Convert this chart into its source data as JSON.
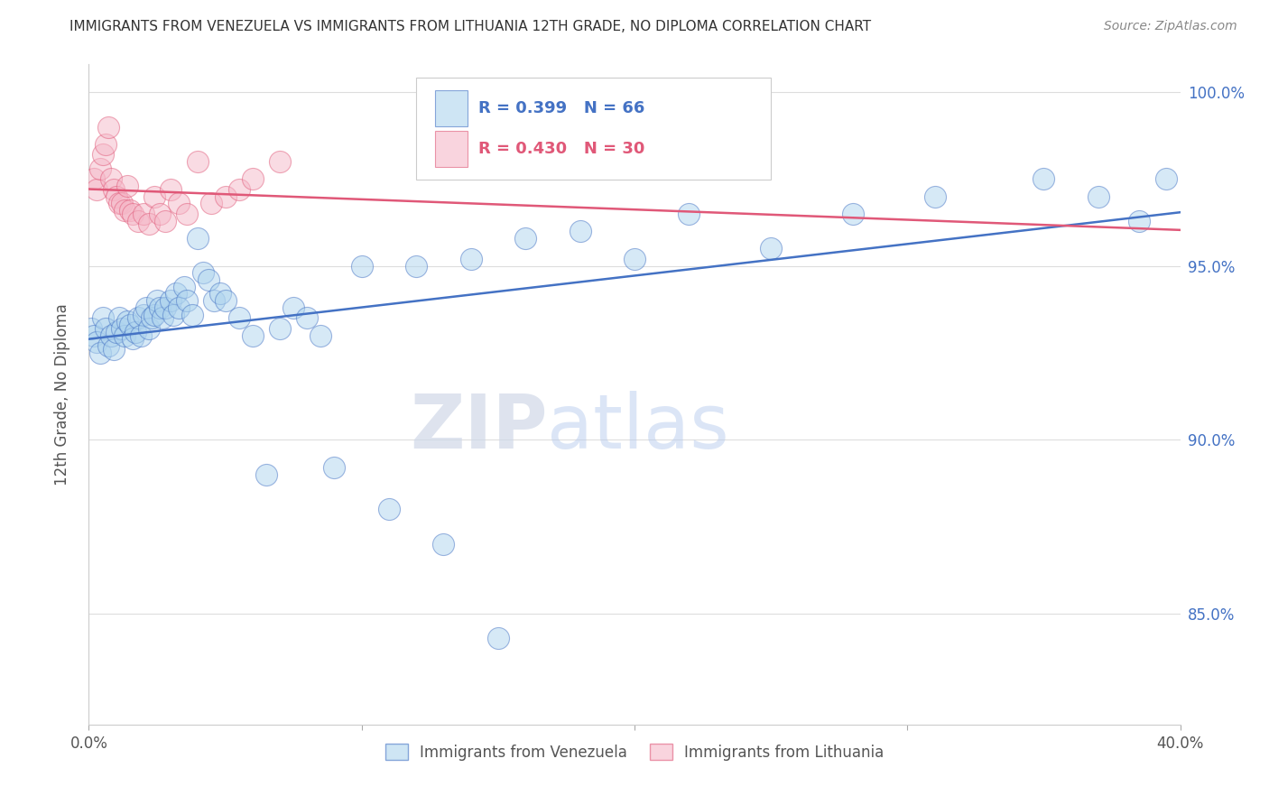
{
  "title": "IMMIGRANTS FROM VENEZUELA VS IMMIGRANTS FROM LITHUANIA 12TH GRADE, NO DIPLOMA CORRELATION CHART",
  "source": "Source: ZipAtlas.com",
  "ylabel": "12th Grade, No Diploma",
  "xlim": [
    0.0,
    0.4
  ],
  "ylim": [
    0.818,
    1.008
  ],
  "R_venezuela": 0.399,
  "N_venezuela": 66,
  "R_lithuania": 0.43,
  "N_lithuania": 30,
  "color_venezuela": "#aed4ee",
  "color_lithuania": "#f5b8c8",
  "line_color_venezuela": "#4472c4",
  "line_color_lithuania": "#e05878",
  "legend_label_venezuela": "Immigrants from Venezuela",
  "legend_label_lithuania": "Immigrants from Lithuania",
  "venezuela_x": [
    0.001,
    0.002,
    0.003,
    0.004,
    0.005,
    0.006,
    0.007,
    0.008,
    0.009,
    0.01,
    0.011,
    0.012,
    0.013,
    0.014,
    0.015,
    0.016,
    0.017,
    0.018,
    0.019,
    0.02,
    0.021,
    0.022,
    0.023,
    0.024,
    0.025,
    0.026,
    0.027,
    0.028,
    0.03,
    0.031,
    0.032,
    0.033,
    0.035,
    0.036,
    0.038,
    0.04,
    0.042,
    0.044,
    0.046,
    0.048,
    0.05,
    0.055,
    0.06,
    0.065,
    0.07,
    0.075,
    0.08,
    0.085,
    0.09,
    0.1,
    0.11,
    0.12,
    0.13,
    0.14,
    0.15,
    0.16,
    0.18,
    0.2,
    0.22,
    0.25,
    0.28,
    0.31,
    0.35,
    0.37,
    0.385,
    0.395
  ],
  "venezuela_y": [
    0.932,
    0.93,
    0.928,
    0.925,
    0.935,
    0.932,
    0.927,
    0.93,
    0.926,
    0.931,
    0.935,
    0.932,
    0.93,
    0.934,
    0.933,
    0.929,
    0.931,
    0.935,
    0.93,
    0.936,
    0.938,
    0.932,
    0.935,
    0.936,
    0.94,
    0.938,
    0.935,
    0.938,
    0.94,
    0.936,
    0.942,
    0.938,
    0.944,
    0.94,
    0.936,
    0.958,
    0.948,
    0.946,
    0.94,
    0.942,
    0.94,
    0.935,
    0.93,
    0.89,
    0.932,
    0.938,
    0.935,
    0.93,
    0.892,
    0.95,
    0.88,
    0.95,
    0.87,
    0.952,
    0.843,
    0.958,
    0.96,
    0.952,
    0.965,
    0.955,
    0.965,
    0.97,
    0.975,
    0.97,
    0.963,
    0.975
  ],
  "lithuania_x": [
    0.002,
    0.003,
    0.004,
    0.005,
    0.006,
    0.007,
    0.008,
    0.009,
    0.01,
    0.011,
    0.012,
    0.013,
    0.014,
    0.015,
    0.016,
    0.018,
    0.02,
    0.022,
    0.024,
    0.026,
    0.028,
    0.03,
    0.033,
    0.036,
    0.04,
    0.045,
    0.05,
    0.055,
    0.06,
    0.07
  ],
  "lithuania_y": [
    0.975,
    0.972,
    0.978,
    0.982,
    0.985,
    0.99,
    0.975,
    0.972,
    0.97,
    0.968,
    0.968,
    0.966,
    0.973,
    0.966,
    0.965,
    0.963,
    0.965,
    0.962,
    0.97,
    0.965,
    0.963,
    0.972,
    0.968,
    0.965,
    0.98,
    0.968,
    0.97,
    0.972,
    0.975,
    0.98
  ],
  "watermark_zip": "ZIP",
  "watermark_atlas": "atlas",
  "background_color": "#ffffff",
  "grid_color": "#dddddd",
  "ytick_positions": [
    0.85,
    0.9,
    0.95,
    1.0
  ],
  "ytick_labels": [
    "85.0%",
    "90.0%",
    "95.0%",
    "100.0%"
  ],
  "xtick_positions": [
    0.0,
    0.1,
    0.2,
    0.3,
    0.4
  ],
  "xtick_labels": [
    "0.0%",
    "",
    "",
    "",
    "40.0%"
  ],
  "grid_yticks": [
    0.85,
    0.9,
    0.95,
    1.0
  ]
}
